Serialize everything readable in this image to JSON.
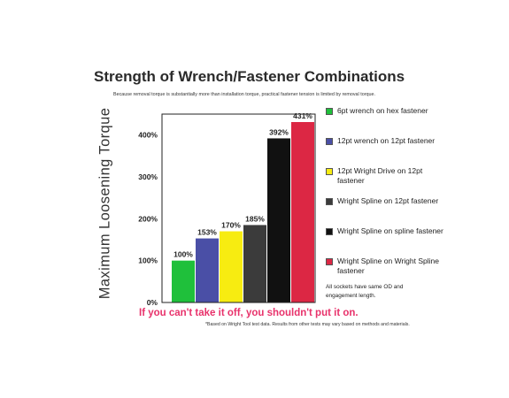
{
  "chart_data": {
    "type": "bar",
    "title": "Strength of Wrench/Fastener Combinations",
    "subtitle": "Because removal torque is substantially more than installation torque, practical fastener tension is limited by removal torque.",
    "ylabel": "Maximum  Loosening  Torque",
    "xlabel": "",
    "ylim": [
      0,
      450
    ],
    "yticks": [
      0,
      100,
      200,
      300,
      400
    ],
    "ytick_labels": [
      "0%",
      "100%",
      "200%",
      "300%",
      "400%"
    ],
    "grid": false,
    "legend_position": "right",
    "categories": [
      "6pt wrench on hex fastener",
      "12pt wrench on 12pt fastener",
      "12pt Wright Drive on 12pt fastener",
      "Wright Spline on 12pt fastener",
      "Wright Spline on  spline fastener",
      "Wright Spline on Wright Spline fastener"
    ],
    "values": [
      100,
      153,
      170,
      185,
      392,
      431
    ],
    "value_labels": [
      "100%",
      "153%",
      "170%",
      "185%",
      "392%",
      "431%"
    ],
    "colors": [
      "#1fc03b",
      "#4a4fa6",
      "#f7ec11",
      "#3b3b3b",
      "#111111",
      "#dc2744"
    ]
  },
  "note": "All sockets have same OD and engagement length.",
  "slogan": "If you can't take it off, you shouldn't put it on.",
  "footnote": "*Based on Wright Tool test data. Results from other tests may vary based on methods and materials."
}
